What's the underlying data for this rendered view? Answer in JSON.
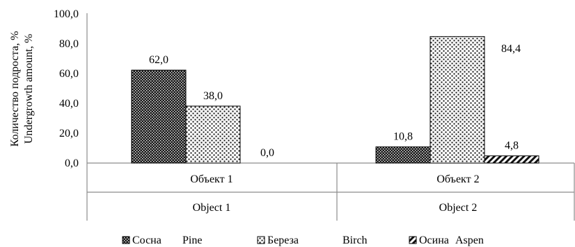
{
  "chart_data": {
    "type": "bar",
    "ylabel_lines": [
      "Количество подроста, %",
      "Undergrowth amount, %"
    ],
    "ylim": [
      0,
      100
    ],
    "y_ticks": [
      "0,0",
      "20,0",
      "40,0",
      "60,0",
      "80,0",
      "100,0"
    ],
    "grid": false,
    "legend_position": "bottom",
    "categories": [
      {
        "label_ru": "Объект 1",
        "label_en": "Object 1"
      },
      {
        "label_ru": "Объект 2",
        "label_en": "Object 2"
      }
    ],
    "series": [
      {
        "name": "Сосна",
        "name_en": "Pine",
        "pattern": "dense-dots",
        "values": [
          62.0,
          10.8
        ],
        "labels": [
          "62,0",
          "10,8"
        ]
      },
      {
        "name": "Береза",
        "name_en": "Birch",
        "pattern": "sparse-squares",
        "values": [
          38.0,
          84.4
        ],
        "labels": [
          "38,0",
          "84,4"
        ]
      },
      {
        "name": "Осина",
        "name_en": "Aspen",
        "pattern": "diagonal-stripes",
        "values": [
          0.0,
          4.8
        ],
        "labels": [
          "0,0",
          "4,8"
        ]
      }
    ]
  }
}
